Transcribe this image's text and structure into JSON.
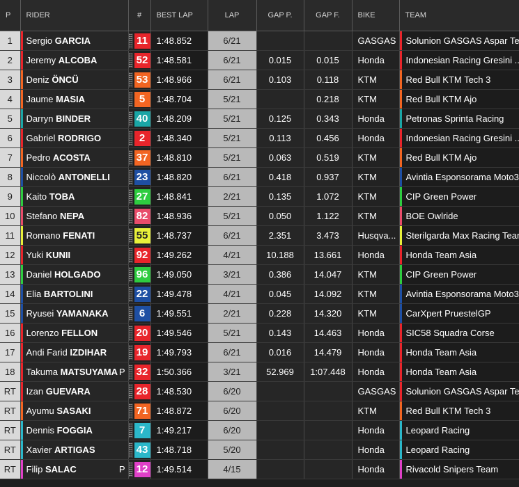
{
  "headers": {
    "pos": "P",
    "rider": "RIDER",
    "num": "#",
    "best_lap": "BEST LAP",
    "lap": "LAP",
    "gap_prev": "GAP P.",
    "gap_first": "GAP F.",
    "bike": "BIKE",
    "team": "TEAM"
  },
  "colors": {
    "gasgas": "#e8252b",
    "honda_gresini": "#e8252b",
    "ktm_orange": "#f26522",
    "sprinta": "#1aa6a6",
    "moto3_blue": "#1e4fa3",
    "cip_green": "#2ecc40",
    "boe_red": "#e84c6a",
    "yellow": "#e8f03a",
    "leopard": "#2bb7c9",
    "sic58": "#e8252b",
    "rivacold": "#e040c8"
  },
  "rows": [
    {
      "pos": "1",
      "first": "Sergio",
      "last": "GARCIA",
      "flag": "",
      "num": "11",
      "num_color": "#e8252b",
      "best": "1:48.852",
      "lap": "6/21",
      "gap_p": "",
      "gap_f": "",
      "bike": "GASGAS",
      "team": "Solunion GASGAS Aspar Team",
      "team_color": "#e8252b"
    },
    {
      "pos": "2",
      "first": "Jeremy",
      "last": "ALCOBA",
      "flag": "",
      "num": "52",
      "num_color": "#e8252b",
      "best": "1:48.581",
      "lap": "6/21",
      "gap_p": "0.015",
      "gap_f": "0.015",
      "bike": "Honda",
      "team": "Indonesian Racing Gresini ...",
      "team_color": "#e8252b"
    },
    {
      "pos": "3",
      "first": "Deniz",
      "last": "ÖNCÜ",
      "flag": "",
      "num": "53",
      "num_color": "#f26522",
      "best": "1:48.966",
      "lap": "6/21",
      "gap_p": "0.103",
      "gap_f": "0.118",
      "bike": "KTM",
      "team": "Red Bull KTM Tech 3",
      "team_color": "#f26522"
    },
    {
      "pos": "4",
      "first": "Jaume",
      "last": "MASIA",
      "flag": "",
      "num": "5",
      "num_color": "#f26522",
      "best": "1:48.704",
      "lap": "5/21",
      "gap_p": "",
      "gap_f": "0.218",
      "bike": "KTM",
      "team": "Red Bull KTM Ajo",
      "team_color": "#f26522"
    },
    {
      "pos": "5",
      "first": "Darryn",
      "last": "BINDER",
      "flag": "",
      "num": "40",
      "num_color": "#1aa6a6",
      "best": "1:48.209",
      "lap": "5/21",
      "gap_p": "0.125",
      "gap_f": "0.343",
      "bike": "Honda",
      "team": "Petronas Sprinta Racing",
      "team_color": "#1aa6a6"
    },
    {
      "pos": "6",
      "first": "Gabriel",
      "last": "RODRIGO",
      "flag": "",
      "num": "2",
      "num_color": "#e8252b",
      "best": "1:48.340",
      "lap": "5/21",
      "gap_p": "0.113",
      "gap_f": "0.456",
      "bike": "Honda",
      "team": "Indonesian Racing Gresini ...",
      "team_color": "#e8252b"
    },
    {
      "pos": "7",
      "first": "Pedro",
      "last": "ACOSTA",
      "flag": "",
      "num": "37",
      "num_color": "#f26522",
      "best": "1:48.810",
      "lap": "5/21",
      "gap_p": "0.063",
      "gap_f": "0.519",
      "bike": "KTM",
      "team": "Red Bull KTM Ajo",
      "team_color": "#f26522"
    },
    {
      "pos": "8",
      "first": "Niccolò",
      "last": "ANTONELLI",
      "flag": "",
      "num": "23",
      "num_color": "#1e4fa3",
      "best": "1:48.820",
      "lap": "6/21",
      "gap_p": "0.418",
      "gap_f": "0.937",
      "bike": "KTM",
      "team": "Avintia Esponsorama Moto3",
      "team_color": "#1e4fa3"
    },
    {
      "pos": "9",
      "first": "Kaito",
      "last": "TOBA",
      "flag": "",
      "num": "27",
      "num_color": "#2ecc40",
      "best": "1:48.841",
      "lap": "2/21",
      "gap_p": "0.135",
      "gap_f": "1.072",
      "bike": "KTM",
      "team": "CIP Green Power",
      "team_color": "#2ecc40"
    },
    {
      "pos": "10",
      "first": "Stefano",
      "last": "NEPA",
      "flag": "",
      "num": "82",
      "num_color": "#e84c6a",
      "best": "1:48.936",
      "lap": "5/21",
      "gap_p": "0.050",
      "gap_f": "1.122",
      "bike": "KTM",
      "team": "BOE Owlride",
      "team_color": "#e84c6a"
    },
    {
      "pos": "11",
      "first": "Romano",
      "last": "FENATI",
      "flag": "",
      "num": "55",
      "num_color": "#e8f03a",
      "num_text": "#222222",
      "best": "1:48.737",
      "lap": "6/21",
      "gap_p": "2.351",
      "gap_f": "3.473",
      "bike": "Husqva...",
      "team": "Sterilgarda Max Racing Team",
      "team_color": "#e8f03a"
    },
    {
      "pos": "12",
      "first": "Yuki",
      "last": "KUNII",
      "flag": "",
      "num": "92",
      "num_color": "#e8252b",
      "best": "1:49.262",
      "lap": "4/21",
      "gap_p": "10.188",
      "gap_f": "13.661",
      "bike": "Honda",
      "team": "Honda Team Asia",
      "team_color": "#e8252b"
    },
    {
      "pos": "13",
      "first": "Daniel",
      "last": "HOLGADO",
      "flag": "",
      "num": "96",
      "num_color": "#2ecc40",
      "best": "1:49.050",
      "lap": "3/21",
      "gap_p": "0.386",
      "gap_f": "14.047",
      "bike": "KTM",
      "team": "CIP Green Power",
      "team_color": "#2ecc40"
    },
    {
      "pos": "14",
      "first": "Elia",
      "last": "BARTOLINI",
      "flag": "",
      "num": "22",
      "num_color": "#1e4fa3",
      "best": "1:49.478",
      "lap": "4/21",
      "gap_p": "0.045",
      "gap_f": "14.092",
      "bike": "KTM",
      "team": "Avintia Esponsorama Moto3",
      "team_color": "#1e4fa3"
    },
    {
      "pos": "15",
      "first": "Ryusei",
      "last": "YAMANAKA",
      "flag": "",
      "num": "6",
      "num_color": "#1e4fa3",
      "best": "1:49.551",
      "lap": "2/21",
      "gap_p": "0.228",
      "gap_f": "14.320",
      "bike": "KTM",
      "team": "CarXpert PruestelGP",
      "team_color": "#1e4fa3"
    },
    {
      "pos": "16",
      "first": "Lorenzo",
      "last": "FELLON",
      "flag": "",
      "num": "20",
      "num_color": "#e8252b",
      "best": "1:49.546",
      "lap": "5/21",
      "gap_p": "0.143",
      "gap_f": "14.463",
      "bike": "Honda",
      "team": "SIC58 Squadra Corse",
      "team_color": "#e8252b"
    },
    {
      "pos": "17",
      "first": "Andi Farid",
      "last": "IZDIHAR",
      "flag": "",
      "num": "19",
      "num_color": "#e8252b",
      "best": "1:49.793",
      "lap": "6/21",
      "gap_p": "0.016",
      "gap_f": "14.479",
      "bike": "Honda",
      "team": "Honda Team Asia",
      "team_color": "#e8252b"
    },
    {
      "pos": "18",
      "first": "Takuma",
      "last": "MATSUYAMA",
      "flag": "P",
      "num": "32",
      "num_color": "#e8252b",
      "best": "1:50.366",
      "lap": "3/21",
      "gap_p": "52.969",
      "gap_f": "1:07.448",
      "bike": "Honda",
      "team": "Honda Team Asia",
      "team_color": "#e8252b"
    },
    {
      "pos": "RT",
      "first": "Izan",
      "last": "GUEVARA",
      "flag": "",
      "num": "28",
      "num_color": "#e8252b",
      "best": "1:48.530",
      "lap": "6/20",
      "gap_p": "",
      "gap_f": "",
      "bike": "GASGAS",
      "team": "Solunion GASGAS Aspar Tea...",
      "team_color": "#e8252b"
    },
    {
      "pos": "RT",
      "first": "Ayumu",
      "last": "SASAKI",
      "flag": "",
      "num": "71",
      "num_color": "#f26522",
      "best": "1:48.872",
      "lap": "6/20",
      "gap_p": "",
      "gap_f": "",
      "bike": "KTM",
      "team": "Red Bull KTM Tech 3",
      "team_color": "#f26522"
    },
    {
      "pos": "RT",
      "first": "Dennis",
      "last": "FOGGIA",
      "flag": "",
      "num": "7",
      "num_color": "#2bb7c9",
      "best": "1:49.217",
      "lap": "6/20",
      "gap_p": "",
      "gap_f": "",
      "bike": "Honda",
      "team": "Leopard Racing",
      "team_color": "#2bb7c9"
    },
    {
      "pos": "RT",
      "first": "Xavier",
      "last": "ARTIGAS",
      "flag": "",
      "num": "43",
      "num_color": "#2bb7c9",
      "best": "1:48.718",
      "lap": "5/20",
      "gap_p": "",
      "gap_f": "",
      "bike": "Honda",
      "team": "Leopard Racing",
      "team_color": "#2bb7c9"
    },
    {
      "pos": "RT",
      "first": "Filip",
      "last": "SALAC",
      "flag": "P",
      "num": "12",
      "num_color": "#e040c8",
      "best": "1:49.514",
      "lap": "4/15",
      "gap_p": "",
      "gap_f": "",
      "bike": "Honda",
      "team": "Rivacold Snipers Team",
      "team_color": "#e040c8"
    }
  ]
}
